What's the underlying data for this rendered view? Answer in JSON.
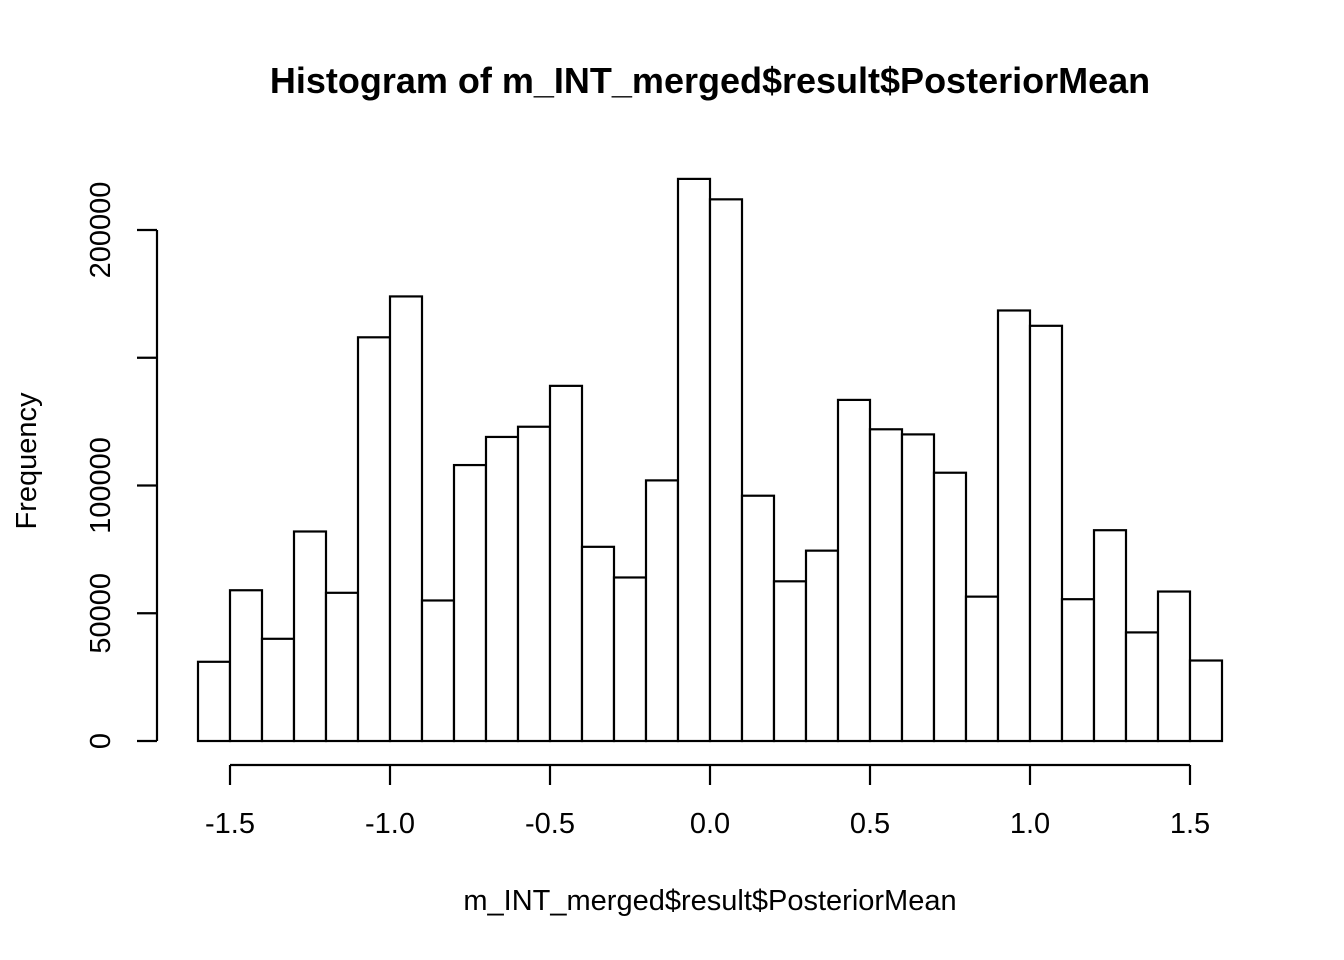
{
  "chart_data": {
    "type": "bar",
    "title": "Histogram of m_INT_merged$result$PosteriorMean",
    "xlabel": "m_INT_merged$result$PosteriorMean",
    "ylabel": "Frequency",
    "xlim": [
      -1.6,
      1.6
    ],
    "ylim": [
      0,
      220000
    ],
    "bin_width": 0.1,
    "bin_start": -1.6,
    "x_ticks": [
      -1.5,
      -1.0,
      -0.5,
      0.0,
      0.5,
      1.0,
      1.5
    ],
    "x_tick_labels": [
      "-1.5",
      "-1.0",
      "-0.5",
      "0.0",
      "0.5",
      "1.0",
      "1.5"
    ],
    "y_ticks": [
      0,
      50000,
      100000,
      150000,
      200000
    ],
    "y_tick_labels": [
      "0",
      "50000",
      "100000",
      "",
      "200000"
    ],
    "values": [
      31000,
      59000,
      40000,
      82000,
      58000,
      158000,
      174000,
      55000,
      108000,
      119000,
      123000,
      139000,
      76000,
      64000,
      102000,
      220000,
      212000,
      96000,
      62500,
      74500,
      133500,
      122000,
      120000,
      105000,
      56500,
      168500,
      162500,
      55500,
      82500,
      42500,
      58500,
      31500
    ],
    "grid": false,
    "legend": "none"
  }
}
